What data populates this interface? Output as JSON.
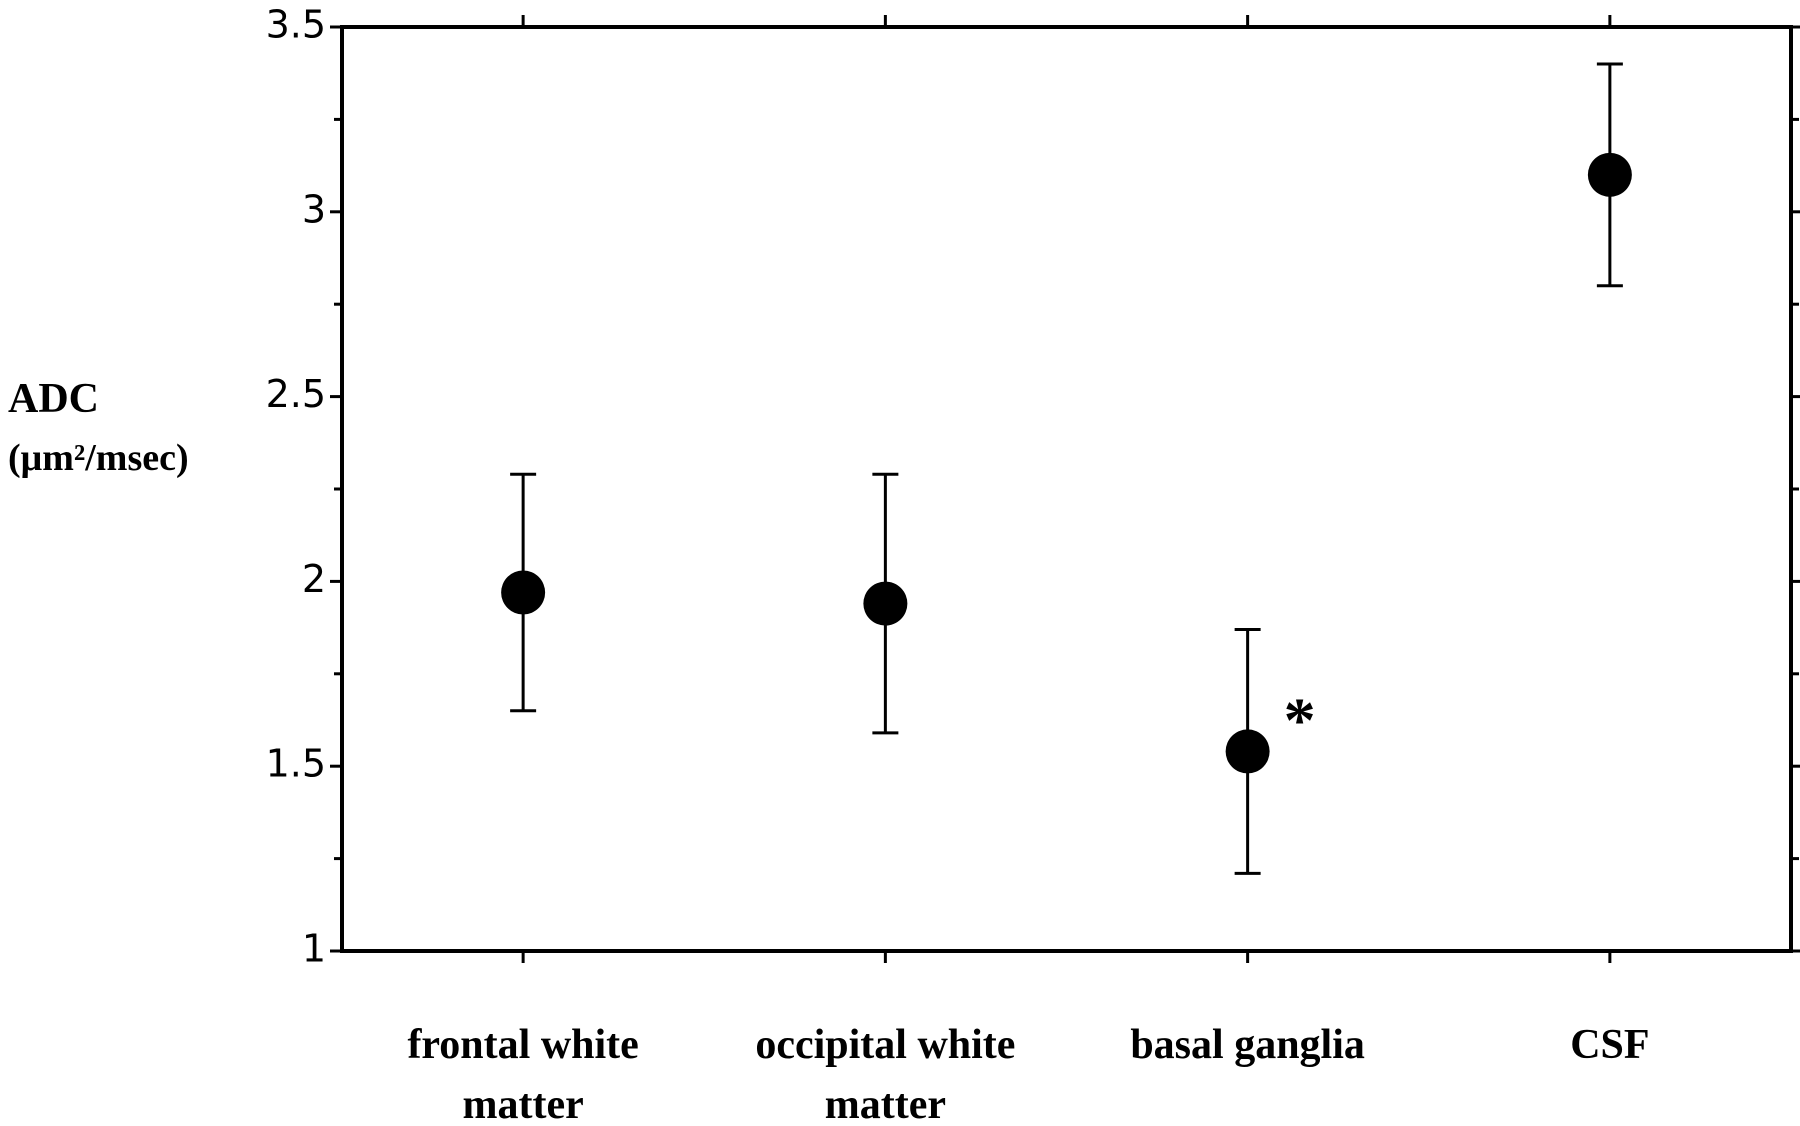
{
  "chart_data": {
    "type": "scatter",
    "y_label": [
      "ADC",
      "(μm²/msec)"
    ],
    "categories": [
      "frontal white matter",
      "occipital white matter",
      "basal ganglia",
      "CSF"
    ],
    "values": [
      1.97,
      1.94,
      1.54,
      3.1
    ],
    "errors": [
      0.32,
      0.35,
      0.33,
      0.3
    ],
    "color": "#000000",
    "annotations": [
      {
        "text": "*",
        "category": 2
      }
    ],
    "ylim": [
      1,
      3.5
    ],
    "yticks": [
      1,
      1.5,
      2,
      2.5,
      3,
      3.5
    ],
    "minor_yticks": [
      1.25,
      1.75,
      2.25,
      2.75,
      3.25
    ],
    "grid": false
  }
}
